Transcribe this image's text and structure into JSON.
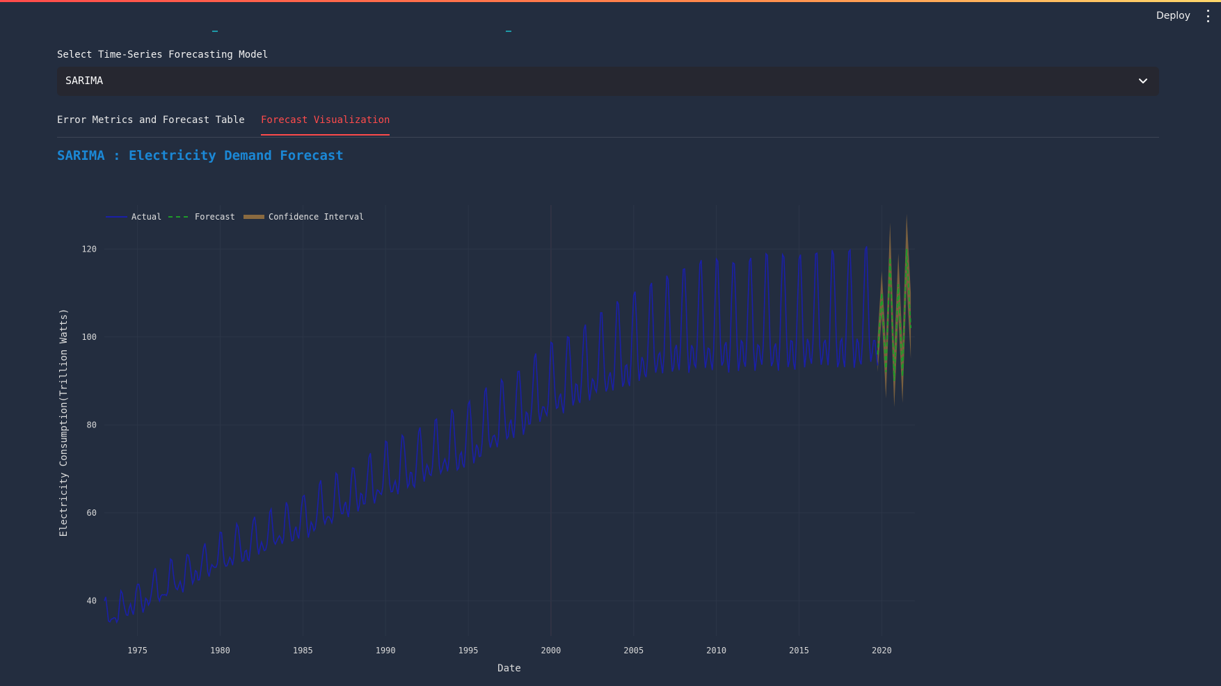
{
  "header": {
    "deploy_label": "Deploy"
  },
  "model_select": {
    "label": "Select Time-Series Forecasting Model",
    "selected": "SARIMA"
  },
  "tabs": [
    {
      "label": "Error Metrics and Forecast Table",
      "active": false
    },
    {
      "label": "Forecast Visualization",
      "active": true
    }
  ],
  "colors": {
    "accent": "#ff4b4b",
    "title": "#1b88d6",
    "actual": "#1a1fa8",
    "forecast": "#1f9a2a",
    "ci": "#8a6a40"
  },
  "chart_data": {
    "type": "line",
    "title": "SARIMA : Electricity Demand Forecast",
    "xlabel": "Date",
    "ylabel": "Electricity Consumption(Trillion Watts)",
    "xlim": [
      1973,
      2022
    ],
    "ylim": [
      32,
      130
    ],
    "x_ticks": [
      1975,
      1980,
      1985,
      1990,
      1995,
      2000,
      2005,
      2010,
      2015,
      2020
    ],
    "y_ticks": [
      40,
      60,
      80,
      100,
      120
    ],
    "legend": [
      "Actual",
      "Forecast",
      "Confidence Interval"
    ],
    "legend_position": "top-left",
    "grid": true,
    "actual": {
      "name": "Actual",
      "start_year": 1973,
      "end_year": 2019.75,
      "trend_points": [
        [
          1973,
          36
        ],
        [
          1980,
          50
        ],
        [
          1985,
          58
        ],
        [
          1990,
          68
        ],
        [
          1995,
          76
        ],
        [
          2000,
          88
        ],
        [
          2005,
          97
        ],
        [
          2008,
          101
        ],
        [
          2019,
          103
        ]
      ],
      "seasonal_amplitude_points": [
        [
          1973,
          4
        ],
        [
          1985,
          6
        ],
        [
          1995,
          9
        ],
        [
          2000,
          10
        ],
        [
          2005,
          13
        ],
        [
          2010,
          16
        ],
        [
          2019,
          17
        ]
      ]
    },
    "forecast": {
      "name": "Forecast",
      "x": [
        2019.75,
        2020.0,
        2020.25,
        2020.5,
        2020.75,
        2021.0,
        2021.25,
        2021.5,
        2021.75
      ],
      "y": [
        96,
        110,
        92,
        118,
        90,
        112,
        91,
        120,
        102
      ]
    },
    "confidence_interval": {
      "name": "Confidence Interval",
      "lower": [
        92,
        105,
        86,
        112,
        84,
        105,
        85,
        112,
        95
      ],
      "upper": [
        100,
        115,
        98,
        126,
        97,
        119,
        98,
        128,
        110
      ]
    }
  }
}
